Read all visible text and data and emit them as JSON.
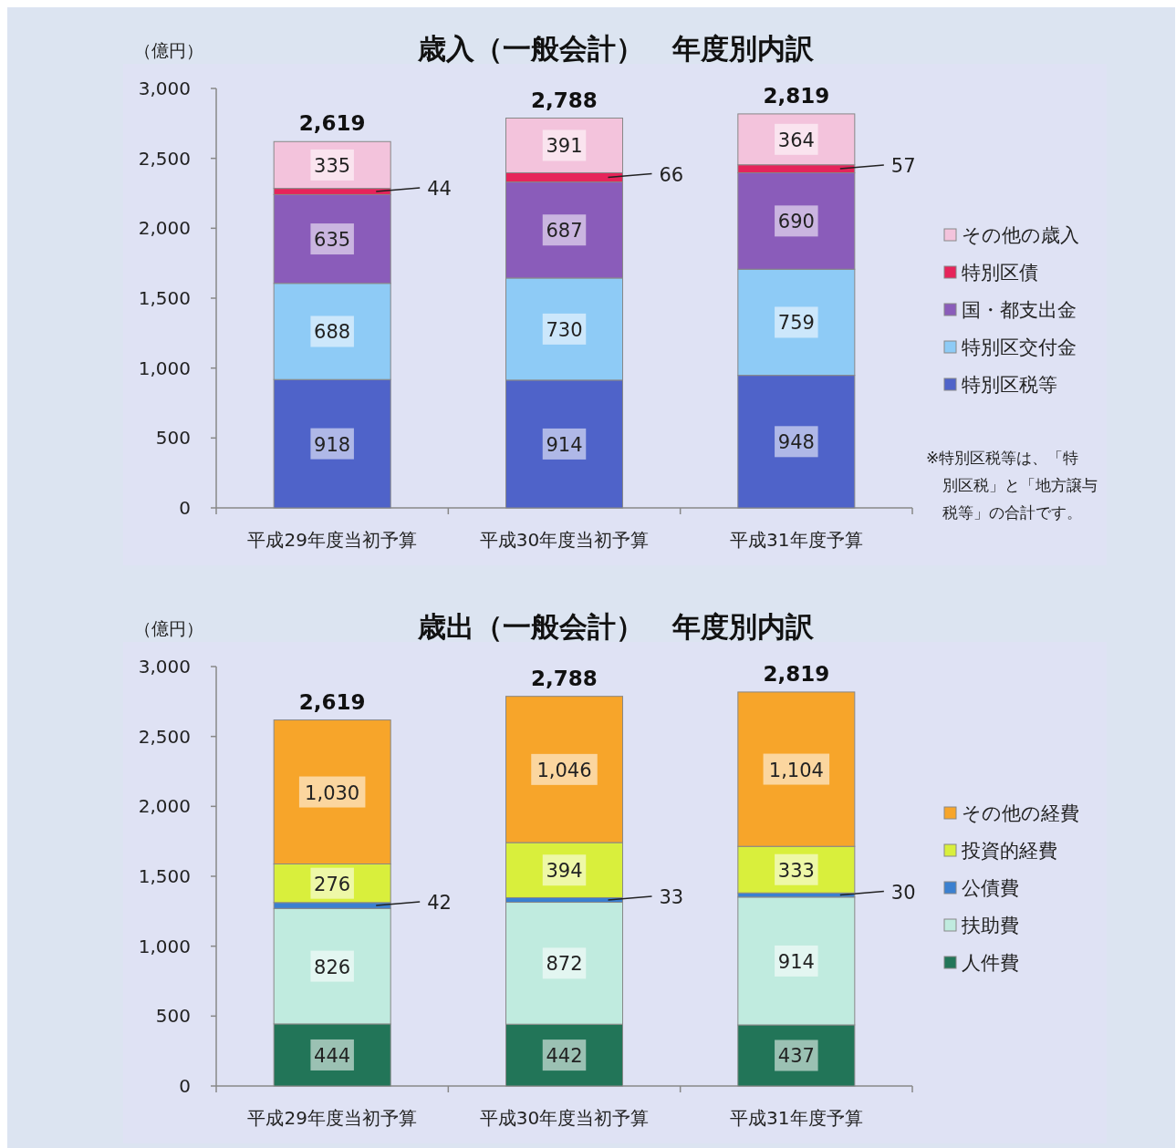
{
  "chart_data": [
    {
      "type": "bar",
      "stacked": true,
      "title": "歳入（一般会計）　年度別内訳",
      "ylabel": "（億円）",
      "categories": [
        "平成29年度当初予算",
        "平成30年度当初予算",
        "平成31年度予算"
      ],
      "ylim": [
        0,
        3000
      ],
      "yticks": [
        0,
        {
          "value": 500,
          "label": "500"
        },
        {
          "value": 1000,
          "label": "1,000"
        },
        {
          "value": 1500,
          "label": "1,500"
        },
        {
          "value": 2000,
          "label": "2,000"
        },
        {
          "value": 2500,
          "label": "2,500"
        },
        {
          "value": 3000,
          "label": "3,000"
        }
      ],
      "grid": false,
      "legend": "right",
      "totals": [
        "2,619",
        "2,788",
        "2,819"
      ],
      "annotations": [
        "※特別区税等は、「特別区税」と「地方譲与税等」の合計です。"
      ],
      "series": [
        {
          "name": "特別区税等",
          "color": "#4f63c9",
          "values": [
            918,
            914,
            948
          ],
          "value_labels": [
            "918",
            "914",
            "948"
          ]
        },
        {
          "name": "特別区交付金",
          "color": "#8ecbf6",
          "values": [
            688,
            730,
            759
          ],
          "value_labels": [
            "688",
            "730",
            "759"
          ]
        },
        {
          "name": "国・都支出金",
          "color": "#8a5cba",
          "values": [
            635,
            687,
            690
          ],
          "value_labels": [
            "635",
            "687",
            "690"
          ]
        },
        {
          "name": "特別区債",
          "color": "#e6245a",
          "values": [
            44,
            66,
            57
          ],
          "value_labels": [
            "44",
            "66",
            "57"
          ]
        },
        {
          "name": "その他の歳入",
          "color": "#f3c3dc",
          "values": [
            335,
            391,
            364
          ],
          "value_labels": [
            "335",
            "391",
            "364"
          ]
        }
      ]
    },
    {
      "type": "bar",
      "stacked": true,
      "title": "歳出（一般会計）　年度別内訳",
      "ylabel": "（億円）",
      "categories": [
        "平成29年度当初予算",
        "平成30年度当初予算",
        "平成31年度予算"
      ],
      "ylim": [
        0,
        3000
      ],
      "yticks": [
        0,
        {
          "value": 500,
          "label": "500"
        },
        {
          "value": 1000,
          "label": "1,000"
        },
        {
          "value": 1500,
          "label": "1,500"
        },
        {
          "value": 2000,
          "label": "2,000"
        },
        {
          "value": 2500,
          "label": "2,500"
        },
        {
          "value": 3000,
          "label": "3,000"
        }
      ],
      "grid": false,
      "legend": "right",
      "totals": [
        "2,619",
        "2,788",
        "2,819"
      ],
      "series": [
        {
          "name": "人件費",
          "color": "#227558",
          "values": [
            444,
            442,
            437
          ],
          "value_labels": [
            "444",
            "442",
            "437"
          ]
        },
        {
          "name": "扶助費",
          "color": "#c0ebdf",
          "values": [
            826,
            872,
            914
          ],
          "value_labels": [
            "826",
            "872",
            "914"
          ]
        },
        {
          "name": "公債費",
          "color": "#3b80d0",
          "values": [
            42,
            33,
            30
          ],
          "value_labels": [
            "42",
            "33",
            "30"
          ]
        },
        {
          "name": "投資的経費",
          "color": "#d9ef3c",
          "values": [
            276,
            394,
            333
          ],
          "value_labels": [
            "276",
            "394",
            "333"
          ]
        },
        {
          "name": "その他の経費",
          "color": "#f7a52a",
          "values": [
            1030,
            1046,
            1104
          ],
          "value_labels": [
            "1,030",
            "1,046",
            "1,104"
          ]
        }
      ]
    }
  ]
}
